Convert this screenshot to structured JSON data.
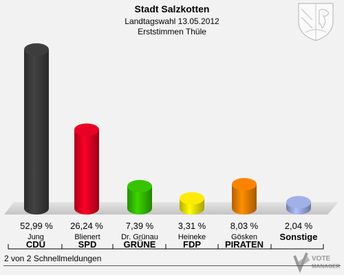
{
  "chart_data": {
    "type": "bar",
    "title": "Stadt Salzkotten",
    "subtitle": "Landtagswahl 13.05.2012",
    "subtitle2": "Erststimmen Thüle",
    "ylim": [
      0,
      55
    ],
    "categories": [
      "CDU",
      "SPD",
      "GRÜNE",
      "FDP",
      "PIRATEN",
      "Sonstige"
    ],
    "candidates": [
      "Jung",
      "Blienert",
      "Dr. Grünau",
      "Heineke",
      "Gösken",
      ""
    ],
    "values": [
      52.99,
      26.24,
      7.39,
      3.31,
      8.03,
      2.04
    ],
    "value_labels": [
      "52,99 %",
      "26,24 %",
      "7,39 %",
      "3,31 %",
      "8,03 %",
      "2,04 %"
    ],
    "colors": [
      "#3a3a3a",
      "#dd0022",
      "#33bb00",
      "#f5e000",
      "#f07d00",
      "#9aa8dd"
    ]
  },
  "footer": {
    "status": "2 von 2 Schnellmeldungen",
    "brand_line1": "VOTE",
    "brand_line2": "MANAGER"
  },
  "icons": {
    "emblem": "coat-of-arms-icon",
    "brand": "vote-manager-logo"
  }
}
